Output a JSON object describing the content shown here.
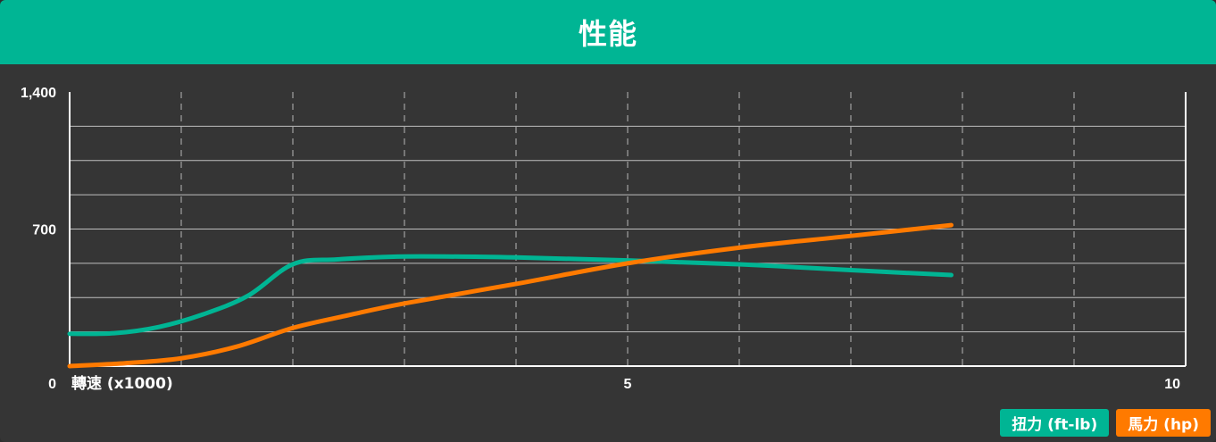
{
  "header": {
    "title": "性能"
  },
  "chart_data": {
    "type": "line",
    "title": "性能",
    "xlabel": "轉速 (x1000)",
    "ylabel": "",
    "xlim": [
      0,
      10
    ],
    "ylim": [
      0,
      1400
    ],
    "x_ticks": [
      {
        "value": 0,
        "label": "0"
      },
      {
        "value": 5,
        "label": "5"
      },
      {
        "value": 10,
        "label": "10"
      }
    ],
    "y_ticks": [
      {
        "value": 700,
        "label": "700"
      },
      {
        "value": 1400,
        "label": "1,400"
      }
    ],
    "x_grid": [
      1,
      2,
      3,
      4,
      5,
      6,
      7,
      8,
      9
    ],
    "y_grid": [
      175,
      350,
      525,
      700,
      875,
      1050,
      1225
    ],
    "series": [
      {
        "name": "扭力 (ft-lb)",
        "color": "#00b594",
        "x": [
          0,
          0.4,
          0.8,
          1.2,
          1.6,
          2.0,
          2.4,
          3.0,
          4.0,
          5.0,
          6.0,
          7.0,
          7.9
        ],
        "y": [
          165,
          168,
          200,
          265,
          360,
          520,
          545,
          560,
          555,
          540,
          520,
          490,
          465
        ]
      },
      {
        "name": "馬力 (hp)",
        "color": "#ff7a00",
        "x": [
          0,
          0.5,
          1.0,
          1.5,
          2.0,
          2.5,
          3.0,
          4.0,
          5.0,
          6.0,
          7.0,
          7.9
        ],
        "y": [
          0,
          15,
          40,
          100,
          195,
          260,
          320,
          420,
          525,
          605,
          665,
          720
        ]
      }
    ]
  },
  "legend": {
    "torque_label": "扭力 (ft-lb)",
    "hp_label": "馬力 (hp)"
  }
}
